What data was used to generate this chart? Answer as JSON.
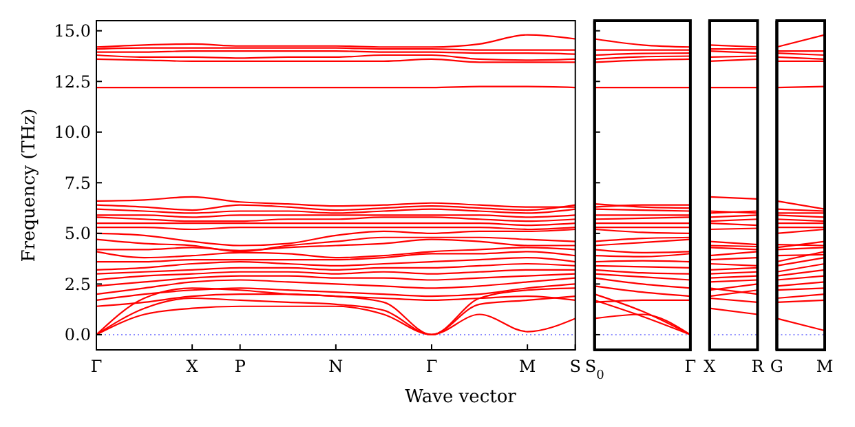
{
  "chart_data": [
    {
      "type": "line",
      "xlabel": "Wave vector",
      "ylabel": "Frequency (THz)",
      "categories": [
        "Γ",
        null,
        "X",
        "P",
        null,
        "N",
        null,
        "Γ",
        null,
        "M",
        "S"
      ],
      "ylim": [
        -0.75,
        15.5
      ],
      "yticks": [
        {
          "value": 0,
          "label": "0.0"
        },
        {
          "value": 2.5,
          "label": "2.5"
        },
        {
          "value": 5,
          "label": "5.0"
        },
        {
          "value": 7.5,
          "label": "7.5"
        },
        {
          "value": 10,
          "label": "10.0"
        },
        {
          "value": 12.5,
          "label": "12.5"
        },
        {
          "value": 15,
          "label": "15.0"
        }
      ],
      "ref_lines": [
        {
          "axis": "y",
          "value": 0,
          "color": "#6666ff",
          "line_style": "dotted"
        }
      ],
      "series": [
        {
          "color": "#ff0000",
          "values": [
            0,
            1.0,
            1.3,
            1.4,
            1.4,
            1.4,
            1.0,
            0,
            1.0,
            0.15,
            0.8
          ]
        },
        {
          "color": "#ff0000",
          "values": [
            0,
            1.3,
            1.8,
            1.7,
            1.6,
            1.5,
            1.2,
            0,
            1.5,
            1.7,
            1.9
          ]
        },
        {
          "color": "#ff0000",
          "values": [
            0,
            1.8,
            2.3,
            2.2,
            2.0,
            1.9,
            1.6,
            0,
            1.8,
            2.2,
            2.3
          ]
        },
        {
          "color": "#ff0000",
          "values": [
            1.4,
            1.6,
            1.9,
            2.0,
            2.0,
            1.9,
            1.8,
            1.7,
            1.8,
            1.9,
            1.7
          ]
        },
        {
          "color": "#ff0000",
          "values": [
            1.7,
            2.0,
            2.2,
            2.3,
            2.2,
            2.1,
            2.0,
            1.9,
            2.0,
            2.3,
            2.5
          ]
        },
        {
          "color": "#ff0000",
          "values": [
            2.0,
            2.3,
            2.6,
            2.7,
            2.6,
            2.5,
            2.4,
            2.3,
            2.4,
            2.6,
            2.8
          ]
        },
        {
          "color": "#ff0000",
          "values": [
            2.4,
            2.6,
            2.8,
            2.9,
            2.9,
            2.8,
            2.8,
            2.7,
            2.8,
            2.9,
            3.0
          ]
        },
        {
          "color": "#ff0000",
          "values": [
            2.7,
            2.9,
            3.0,
            3.1,
            3.1,
            3.0,
            3.1,
            3.0,
            3.1,
            3.2,
            3.2
          ]
        },
        {
          "color": "#ff0000",
          "values": [
            3.0,
            3.1,
            3.2,
            3.3,
            3.3,
            3.2,
            3.3,
            3.3,
            3.4,
            3.5,
            3.4
          ]
        },
        {
          "color": "#ff0000",
          "values": [
            3.2,
            3.3,
            3.5,
            3.6,
            3.5,
            3.4,
            3.5,
            3.6,
            3.7,
            3.8,
            3.6
          ]
        },
        {
          "color": "#ff0000",
          "values": [
            3.6,
            3.6,
            3.7,
            3.7,
            3.7,
            3.7,
            3.8,
            4.0,
            4.0,
            4.1,
            3.9
          ]
        },
        {
          "color": "#ff0000",
          "values": [
            4.1,
            3.8,
            3.9,
            4.05,
            4.0,
            3.8,
            3.9,
            4.1,
            4.2,
            4.3,
            4.2
          ]
        },
        {
          "color": "#ff0000",
          "values": [
            4.2,
            4.2,
            4.3,
            4.15,
            4.3,
            4.4,
            4.5,
            4.7,
            4.6,
            4.4,
            4.4
          ]
        },
        {
          "color": "#ff0000",
          "values": [
            4.7,
            4.5,
            4.4,
            4.1,
            4.4,
            4.6,
            4.8,
            4.8,
            4.8,
            4.7,
            4.6
          ]
        },
        {
          "color": "#ff0000",
          "values": [
            5.0,
            4.9,
            4.6,
            4.4,
            4.5,
            4.9,
            5.1,
            5.0,
            5.1,
            5.1,
            5.2
          ]
        },
        {
          "color": "#ff0000",
          "values": [
            5.3,
            5.3,
            5.2,
            5.3,
            5.3,
            5.3,
            5.3,
            5.3,
            5.3,
            5.2,
            5.3
          ]
        },
        {
          "color": "#ff0000",
          "values": [
            5.5,
            5.5,
            5.5,
            5.5,
            5.5,
            5.5,
            5.5,
            5.5,
            5.5,
            5.4,
            5.5
          ]
        },
        {
          "color": "#ff0000",
          "values": [
            5.8,
            5.7,
            5.6,
            5.6,
            5.7,
            5.7,
            5.8,
            5.8,
            5.7,
            5.6,
            5.7
          ]
        },
        {
          "color": "#ff0000",
          "values": [
            5.9,
            5.9,
            5.8,
            5.9,
            5.9,
            5.9,
            5.9,
            5.9,
            5.9,
            5.8,
            5.9
          ]
        },
        {
          "color": "#ff0000",
          "values": [
            6.2,
            6.1,
            6.0,
            6.1,
            6.1,
            6.0,
            6.1,
            6.2,
            6.1,
            6.0,
            6.2
          ]
        },
        {
          "color": "#ff0000",
          "values": [
            6.4,
            6.3,
            6.15,
            6.4,
            6.3,
            6.15,
            6.25,
            6.35,
            6.25,
            6.15,
            6.4
          ]
        },
        {
          "color": "#ff0000",
          "values": [
            6.6,
            6.65,
            6.8,
            6.55,
            6.45,
            6.35,
            6.4,
            6.5,
            6.4,
            6.3,
            6.3
          ]
        },
        {
          "color": "#ff0000",
          "values": [
            12.2,
            12.2,
            12.2,
            12.2,
            12.2,
            12.2,
            12.2,
            12.2,
            12.25,
            12.25,
            12.2
          ]
        },
        {
          "color": "#ff0000",
          "values": [
            13.6,
            13.55,
            13.5,
            13.5,
            13.5,
            13.5,
            13.5,
            13.6,
            13.45,
            13.45,
            13.45
          ]
        },
        {
          "color": "#ff0000",
          "values": [
            13.8,
            13.7,
            13.7,
            13.65,
            13.7,
            13.7,
            13.8,
            13.8,
            13.6,
            13.55,
            13.6
          ]
        },
        {
          "color": "#ff0000",
          "values": [
            13.95,
            13.95,
            14.0,
            14.0,
            14.0,
            14.0,
            13.95,
            13.95,
            13.9,
            13.9,
            13.85
          ]
        },
        {
          "color": "#ff0000",
          "values": [
            14.1,
            14.15,
            14.15,
            14.15,
            14.15,
            14.15,
            14.1,
            14.1,
            14.05,
            14.05,
            14.05
          ]
        },
        {
          "color": "#ff0000",
          "values": [
            14.2,
            14.3,
            14.35,
            14.25,
            14.25,
            14.25,
            14.2,
            14.2,
            14.35,
            14.8,
            14.6
          ]
        }
      ]
    },
    {
      "type": "line",
      "tick_labels": "x",
      "categories": [
        "S$_{0}$",
        null,
        "Γ"
      ],
      "ylim": [
        -0.75,
        15.5
      ],
      "yticks": [
        {
          "value": 0,
          "label": null
        },
        {
          "value": 2.5,
          "label": null
        },
        {
          "value": 5,
          "label": null
        },
        {
          "value": 7.5,
          "label": null
        },
        {
          "value": 10,
          "label": null
        },
        {
          "value": 12.5,
          "label": null
        },
        {
          "value": 15,
          "label": null
        }
      ],
      "ref_lines": [
        {
          "axis": "y",
          "value": 0,
          "color": "#6666ff",
          "line_style": "dotted"
        }
      ],
      "series": [
        {
          "color": "#ff0000",
          "values": [
            0.8,
            1.0,
            0
          ]
        },
        {
          "color": "#ff0000",
          "values": [
            1.7,
            0.9,
            0
          ]
        },
        {
          "color": "#ff0000",
          "values": [
            2.0,
            1.15,
            0
          ]
        },
        {
          "color": "#ff0000",
          "values": [
            1.6,
            1.7,
            1.7
          ]
        },
        {
          "color": "#ff0000",
          "values": [
            2.4,
            2.1,
            1.9
          ]
        },
        {
          "color": "#ff0000",
          "values": [
            2.8,
            2.5,
            2.3
          ]
        },
        {
          "color": "#ff0000",
          "values": [
            3.0,
            2.85,
            2.7
          ]
        },
        {
          "color": "#ff0000",
          "values": [
            3.2,
            3.05,
            3.0
          ]
        },
        {
          "color": "#ff0000",
          "values": [
            3.4,
            3.35,
            3.3
          ]
        },
        {
          "color": "#ff0000",
          "values": [
            3.6,
            3.65,
            3.6
          ]
        },
        {
          "color": "#ff0000",
          "values": [
            3.9,
            3.85,
            4.0
          ]
        },
        {
          "color": "#ff0000",
          "values": [
            4.2,
            4.05,
            4.1
          ]
        },
        {
          "color": "#ff0000",
          "values": [
            4.4,
            4.55,
            4.7
          ]
        },
        {
          "color": "#ff0000",
          "values": [
            4.6,
            4.75,
            4.8
          ]
        },
        {
          "color": "#ff0000",
          "values": [
            5.2,
            5.05,
            5.0
          ]
        },
        {
          "color": "#ff0000",
          "values": [
            5.3,
            5.3,
            5.3
          ]
        },
        {
          "color": "#ff0000",
          "values": [
            5.5,
            5.5,
            5.5
          ]
        },
        {
          "color": "#ff0000",
          "values": [
            5.7,
            5.75,
            5.8
          ]
        },
        {
          "color": "#ff0000",
          "values": [
            5.9,
            5.9,
            5.9
          ]
        },
        {
          "color": "#ff0000",
          "values": [
            6.2,
            6.15,
            6.1
          ]
        },
        {
          "color": "#ff0000",
          "values": [
            6.45,
            6.3,
            6.25
          ]
        },
        {
          "color": "#ff0000",
          "values": [
            6.3,
            6.4,
            6.4
          ]
        },
        {
          "color": "#ff0000",
          "values": [
            12.2,
            12.2,
            12.2
          ]
        },
        {
          "color": "#ff0000",
          "values": [
            13.45,
            13.55,
            13.6
          ]
        },
        {
          "color": "#ff0000",
          "values": [
            13.6,
            13.72,
            13.75
          ]
        },
        {
          "color": "#ff0000",
          "values": [
            13.8,
            13.88,
            13.9
          ]
        },
        {
          "color": "#ff0000",
          "values": [
            14.05,
            14.05,
            14.05
          ]
        },
        {
          "color": "#ff0000",
          "values": [
            14.6,
            14.3,
            14.2
          ]
        }
      ]
    },
    {
      "type": "line",
      "tick_labels": "x",
      "categories": [
        "X",
        "R"
      ],
      "ylim": [
        -0.75,
        15.5
      ],
      "ref_lines": [
        {
          "axis": "y",
          "value": 0,
          "color": "#6666ff",
          "line_style": "dotted"
        }
      ],
      "series": [
        {
          "color": "#ff0000",
          "values": [
            1.3,
            1.0
          ]
        },
        {
          "color": "#ff0000",
          "values": [
            1.8,
            1.6
          ]
        },
        {
          "color": "#ff0000",
          "values": [
            2.3,
            2.0
          ]
        },
        {
          "color": "#ff0000",
          "values": [
            1.9,
            2.2
          ]
        },
        {
          "color": "#ff0000",
          "values": [
            2.2,
            2.5
          ]
        },
        {
          "color": "#ff0000",
          "values": [
            2.6,
            2.7
          ]
        },
        {
          "color": "#ff0000",
          "values": [
            2.8,
            2.9
          ]
        },
        {
          "color": "#ff0000",
          "values": [
            3.0,
            3.1
          ]
        },
        {
          "color": "#ff0000",
          "values": [
            3.2,
            3.3
          ]
        },
        {
          "color": "#ff0000",
          "values": [
            3.5,
            3.4
          ]
        },
        {
          "color": "#ff0000",
          "values": [
            3.7,
            3.8
          ]
        },
        {
          "color": "#ff0000",
          "values": [
            3.9,
            4.1
          ]
        },
        {
          "color": "#ff0000",
          "values": [
            4.3,
            4.2
          ]
        },
        {
          "color": "#ff0000",
          "values": [
            4.4,
            4.35
          ]
        },
        {
          "color": "#ff0000",
          "values": [
            4.6,
            4.45
          ]
        },
        {
          "color": "#ff0000",
          "values": [
            5.2,
            5.25
          ]
        },
        {
          "color": "#ff0000",
          "values": [
            5.5,
            5.4
          ]
        },
        {
          "color": "#ff0000",
          "values": [
            5.6,
            5.7
          ]
        },
        {
          "color": "#ff0000",
          "values": [
            5.8,
            5.9
          ]
        },
        {
          "color": "#ff0000",
          "values": [
            6.0,
            6.1
          ]
        },
        {
          "color": "#ff0000",
          "values": [
            6.1,
            6.0
          ]
        },
        {
          "color": "#ff0000",
          "values": [
            6.8,
            6.7
          ]
        },
        {
          "color": "#ff0000",
          "values": [
            12.2,
            12.2
          ]
        },
        {
          "color": "#ff0000",
          "values": [
            13.5,
            13.6
          ]
        },
        {
          "color": "#ff0000",
          "values": [
            13.7,
            13.75
          ]
        },
        {
          "color": "#ff0000",
          "values": [
            14.0,
            13.9
          ]
        },
        {
          "color": "#ff0000",
          "values": [
            14.1,
            14.1
          ]
        },
        {
          "color": "#ff0000",
          "values": [
            14.3,
            14.2
          ]
        }
      ]
    },
    {
      "type": "line",
      "tick_labels": "x",
      "categories": [
        "G",
        "M"
      ],
      "ylim": [
        -0.75,
        15.5
      ],
      "ref_lines": [
        {
          "axis": "y",
          "value": 0,
          "color": "#6666ff",
          "line_style": "dotted"
        }
      ],
      "series": [
        {
          "color": "#ff0000",
          "values": [
            0.8,
            0.2
          ]
        },
        {
          "color": "#ff0000",
          "values": [
            1.6,
            1.7
          ]
        },
        {
          "color": "#ff0000",
          "values": [
            1.8,
            2.0
          ]
        },
        {
          "color": "#ff0000",
          "values": [
            2.2,
            2.3
          ]
        },
        {
          "color": "#ff0000",
          "values": [
            2.4,
            2.6
          ]
        },
        {
          "color": "#ff0000",
          "values": [
            2.7,
            2.9
          ]
        },
        {
          "color": "#ff0000",
          "values": [
            2.9,
            3.2
          ]
        },
        {
          "color": "#ff0000",
          "values": [
            3.1,
            3.5
          ]
        },
        {
          "color": "#ff0000",
          "values": [
            3.4,
            3.8
          ]
        },
        {
          "color": "#ff0000",
          "values": [
            3.6,
            4.1
          ]
        },
        {
          "color": "#ff0000",
          "values": [
            3.9,
            3.95
          ]
        },
        {
          "color": "#ff0000",
          "values": [
            4.2,
            4.3
          ]
        },
        {
          "color": "#ff0000",
          "values": [
            4.45,
            4.4
          ]
        },
        {
          "color": "#ff0000",
          "values": [
            4.3,
            4.6
          ]
        },
        {
          "color": "#ff0000",
          "values": [
            5.0,
            5.2
          ]
        },
        {
          "color": "#ff0000",
          "values": [
            5.3,
            5.3
          ]
        },
        {
          "color": "#ff0000",
          "values": [
            5.5,
            5.5
          ]
        },
        {
          "color": "#ff0000",
          "values": [
            5.7,
            5.6
          ]
        },
        {
          "color": "#ff0000",
          "values": [
            5.9,
            5.8
          ]
        },
        {
          "color": "#ff0000",
          "values": [
            6.0,
            6.0
          ]
        },
        {
          "color": "#ff0000",
          "values": [
            6.2,
            6.1
          ]
        },
        {
          "color": "#ff0000",
          "values": [
            6.6,
            6.2
          ]
        },
        {
          "color": "#ff0000",
          "values": [
            12.2,
            12.25
          ]
        },
        {
          "color": "#ff0000",
          "values": [
            13.5,
            13.5
          ]
        },
        {
          "color": "#ff0000",
          "values": [
            13.7,
            13.6
          ]
        },
        {
          "color": "#ff0000",
          "values": [
            13.9,
            13.8
          ]
        },
        {
          "color": "#ff0000",
          "values": [
            14.0,
            14.0
          ]
        },
        {
          "color": "#ff0000",
          "values": [
            14.2,
            14.8
          ]
        }
      ]
    }
  ]
}
